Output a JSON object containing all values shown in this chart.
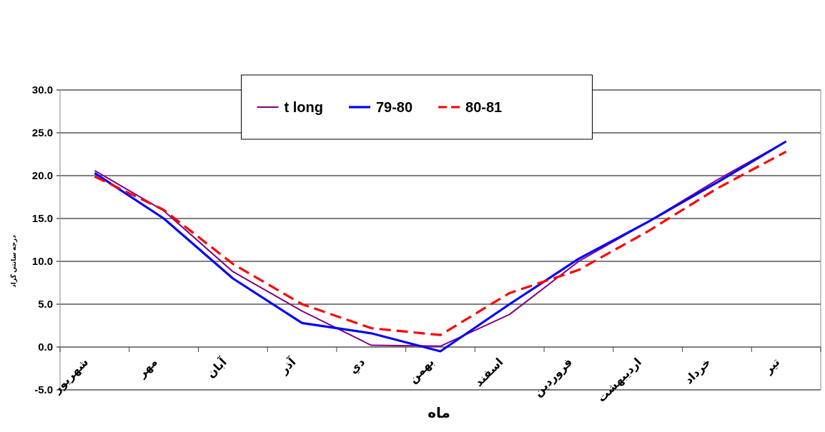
{
  "chart_data": {
    "type": "line",
    "categories": [
      "شهريور",
      "مهر",
      "آبان",
      "آذر",
      "دي",
      "بهمن",
      "اسفند",
      "فروردين",
      "ارديبهشت",
      "خرداد",
      "تير"
    ],
    "series": [
      {
        "name": "t long",
        "color": "#800080",
        "line_style": "solid",
        "values": [
          20.6,
          15.9,
          8.8,
          4.2,
          0.2,
          0.1,
          3.8,
          10.0,
          14.6,
          19.5,
          24.0
        ]
      },
      {
        "name": "79-80",
        "color": "#0000ff",
        "line_style": "solid",
        "values": [
          20.3,
          15.0,
          8.0,
          2.8,
          1.6,
          -0.5,
          5.0,
          10.3,
          14.6,
          19.2,
          24.0
        ]
      },
      {
        "name": "80-81",
        "color": "#ff0000",
        "line_style": "dashed",
        "values": [
          19.9,
          16.0,
          9.7,
          5.0,
          2.2,
          1.4,
          6.3,
          9.0,
          13.5,
          18.5,
          22.8
        ]
      }
    ],
    "xlabel": "ماه",
    "ylabel": "درجه سانتي گراد",
    "ylim": [
      -5,
      30
    ],
    "yticks": [
      {
        "value": -5,
        "label": "-5.0"
      },
      {
        "value": 0,
        "label": "0.0"
      },
      {
        "value": 5,
        "label": "5.0"
      },
      {
        "value": 10,
        "label": "10.0"
      },
      {
        "value": 15,
        "label": "15.0"
      },
      {
        "value": 20,
        "label": "20.0"
      },
      {
        "value": 25,
        "label": "25.0"
      },
      {
        "value": 30,
        "label": "30.0"
      }
    ],
    "grid": "y",
    "legend": "top",
    "marker": "none"
  }
}
